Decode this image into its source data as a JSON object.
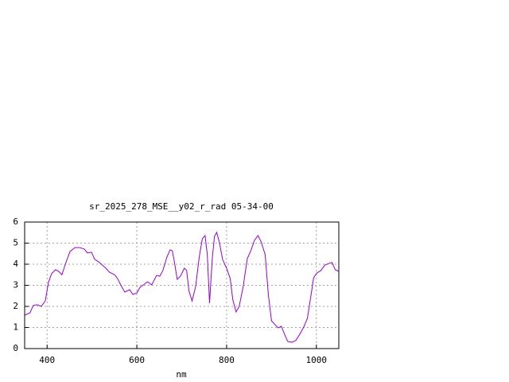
{
  "chart_data": {
    "type": "line",
    "title": "sr_2025_278_MSE__y02_r_rad 05-34-00",
    "x_label": "nm",
    "xlim": [
      350,
      1050
    ],
    "ylim": [
      0,
      6
    ],
    "xticks": [
      400,
      600,
      800,
      1000
    ],
    "yticks": [
      0,
      1,
      2,
      3,
      4,
      5,
      6
    ],
    "grid": true,
    "series": [
      {
        "color": "#9400d3",
        "x": [
          350,
          362,
          369,
          378,
          387,
          396,
          403,
          410,
          419,
          426,
          433,
          442,
          451,
          462,
          472,
          483,
          490,
          499,
          506,
          515,
          523,
          531,
          539,
          550,
          557,
          564,
          573,
          584,
          591,
          600,
          607,
          617,
          624,
          633,
          644,
          651,
          658,
          667,
          674,
          679,
          683,
          690,
          697,
          706,
          711,
          716,
          723,
          731,
          739,
          746,
          752,
          757,
          762,
          768,
          773,
          778,
          784,
          791,
          800,
          808,
          814,
          821,
          828,
          837,
          846,
          854,
          862,
          870,
          877,
          886,
          893,
          900,
          908,
          915,
          922,
          929,
          936,
          945,
          954,
          962,
          971,
          980,
          987,
          994,
          1001,
          1010,
          1019,
          1028,
          1035,
          1042,
          1050
        ],
        "values": [
          1.58,
          1.7,
          2.04,
          2.08,
          2.0,
          2.26,
          3.13,
          3.55,
          3.74,
          3.66,
          3.5,
          4.08,
          4.6,
          4.79,
          4.79,
          4.72,
          4.53,
          4.57,
          4.23,
          4.11,
          3.96,
          3.81,
          3.62,
          3.51,
          3.32,
          3.02,
          2.68,
          2.79,
          2.57,
          2.64,
          2.9,
          3.06,
          3.17,
          3.02,
          3.47,
          3.43,
          3.7,
          4.34,
          4.68,
          4.64,
          4.19,
          3.28,
          3.43,
          3.81,
          3.7,
          2.75,
          2.26,
          2.94,
          4.34,
          5.21,
          5.36,
          4.45,
          2.15,
          4.26,
          5.32,
          5.51,
          5.02,
          4.23,
          3.81,
          3.32,
          2.3,
          1.74,
          2.0,
          2.94,
          4.26,
          4.64,
          5.13,
          5.36,
          5.06,
          4.45,
          2.57,
          1.32,
          1.13,
          0.98,
          1.06,
          0.68,
          0.34,
          0.3,
          0.38,
          0.64,
          0.98,
          1.43,
          2.38,
          3.36,
          3.58,
          3.7,
          3.96,
          4.04,
          4.08,
          3.74,
          3.66
        ]
      }
    ]
  }
}
